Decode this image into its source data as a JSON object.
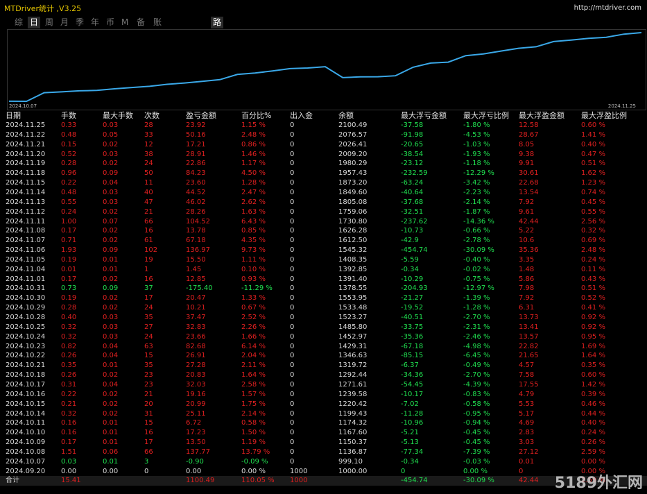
{
  "app": {
    "title": "MTDriver统计 ,V3.25",
    "url": "http://mtdriver.com"
  },
  "tabs": [
    {
      "label": "综",
      "active": false
    },
    {
      "label": "日",
      "active": true
    },
    {
      "label": "周",
      "active": false
    },
    {
      "label": "月",
      "active": false
    },
    {
      "label": "季",
      "active": false
    },
    {
      "label": "年",
      "active": false
    },
    {
      "label": "币",
      "active": false
    },
    {
      "label": "M",
      "active": false
    },
    {
      "label": "备",
      "active": false
    },
    {
      "label": "账户",
      "active": false
    },
    {
      "label": "路径",
      "active": true
    }
  ],
  "chart": {
    "start_date": "2024.10.07",
    "end_date": "2024.11.25",
    "line_color": "#3aa8e8"
  },
  "columns": [
    "日期",
    "手数",
    "最大手数",
    "次数",
    "盈亏金额",
    "百分比%",
    "出入金",
    "余额",
    "最大浮亏金额",
    "最大浮亏比例",
    "最大浮盈金额",
    "最大浮盈比例"
  ],
  "rows": [
    [
      "2024.11.25",
      "0.33",
      "0.03",
      "28",
      "23.92",
      "1.15 %",
      "0",
      "2100.49",
      "-37.58",
      "-1.80 %",
      "12.58",
      "0.60 %"
    ],
    [
      "2024.11.22",
      "0.48",
      "0.05",
      "33",
      "50.16",
      "2.48 %",
      "0",
      "2076.57",
      "-91.98",
      "-4.53 %",
      "28.67",
      "1.41 %"
    ],
    [
      "2024.11.21",
      "0.15",
      "0.02",
      "12",
      "17.21",
      "0.86 %",
      "0",
      "2026.41",
      "-20.65",
      "-1.03 %",
      "8.05",
      "0.40 %"
    ],
    [
      "2024.11.20",
      "0.52",
      "0.03",
      "38",
      "28.91",
      "1.46 %",
      "0",
      "2009.20",
      "-38.54",
      "-1.93 %",
      "9.38",
      "0.47 %"
    ],
    [
      "2024.11.19",
      "0.28",
      "0.02",
      "24",
      "22.86",
      "1.17 %",
      "0",
      "1980.29",
      "-23.12",
      "-1.18 %",
      "9.91",
      "0.51 %"
    ],
    [
      "2024.11.18",
      "0.96",
      "0.09",
      "50",
      "84.23",
      "4.50 %",
      "0",
      "1957.43",
      "-232.59",
      "-12.29 %",
      "30.61",
      "1.62 %"
    ],
    [
      "2024.11.15",
      "0.22",
      "0.04",
      "11",
      "23.60",
      "1.28 %",
      "0",
      "1873.20",
      "-63.24",
      "-3.42 %",
      "22.68",
      "1.23 %"
    ],
    [
      "2024.11.14",
      "0.48",
      "0.03",
      "40",
      "44.52",
      "2.47 %",
      "0",
      "1849.60",
      "-40.64",
      "-2.23 %",
      "13.54",
      "0.74 %"
    ],
    [
      "2024.11.13",
      "0.55",
      "0.03",
      "47",
      "46.02",
      "2.62 %",
      "0",
      "1805.08",
      "-37.68",
      "-2.14 %",
      "7.92",
      "0.45 %"
    ],
    [
      "2024.11.12",
      "0.24",
      "0.02",
      "21",
      "28.26",
      "1.63 %",
      "0",
      "1759.06",
      "-32.51",
      "-1.87 %",
      "9.61",
      "0.55 %"
    ],
    [
      "2024.11.11",
      "1.00",
      "0.07",
      "66",
      "104.52",
      "6.43 %",
      "0",
      "1730.80",
      "-237.62",
      "-14.36 %",
      "42.44",
      "2.56 %"
    ],
    [
      "2024.11.08",
      "0.17",
      "0.02",
      "16",
      "13.78",
      "0.85 %",
      "0",
      "1626.28",
      "-10.73",
      "-0.66 %",
      "5.22",
      "0.32 %"
    ],
    [
      "2024.11.07",
      "0.71",
      "0.02",
      "61",
      "67.18",
      "4.35 %",
      "0",
      "1612.50",
      "-42.9",
      "-2.78 %",
      "10.6",
      "0.69 %"
    ],
    [
      "2024.11.06",
      "1.93",
      "0.09",
      "102",
      "136.97",
      "9.73 %",
      "0",
      "1545.32",
      "-454.74",
      "-30.09 %",
      "35.36",
      "2.48 %"
    ],
    [
      "2024.11.05",
      "0.19",
      "0.01",
      "19",
      "15.50",
      "1.11 %",
      "0",
      "1408.35",
      "-5.59",
      "-0.40 %",
      "3.35",
      "0.24 %"
    ],
    [
      "2024.11.04",
      "0.01",
      "0.01",
      "1",
      "1.45",
      "0.10 %",
      "0",
      "1392.85",
      "-0.34",
      "-0.02 %",
      "1.48",
      "0.11 %"
    ],
    [
      "2024.11.01",
      "0.17",
      "0.02",
      "16",
      "12.85",
      "0.93 %",
      "0",
      "1391.40",
      "-10.29",
      "-0.75 %",
      "5.86",
      "0.43 %"
    ],
    [
      "2024.10.31",
      "0.73",
      "0.09",
      "37",
      "-175.40",
      "-11.29 %",
      "0",
      "1378.55",
      "-204.93",
      "-12.97 %",
      "7.98",
      "0.51 %"
    ],
    [
      "2024.10.30",
      "0.19",
      "0.02",
      "17",
      "20.47",
      "1.33 %",
      "0",
      "1553.95",
      "-21.27",
      "-1.39 %",
      "7.92",
      "0.52 %"
    ],
    [
      "2024.10.29",
      "0.28",
      "0.02",
      "24",
      "10.21",
      "0.67 %",
      "0",
      "1533.48",
      "-19.52",
      "-1.28 %",
      "6.31",
      "0.41 %"
    ],
    [
      "2024.10.28",
      "0.40",
      "0.03",
      "35",
      "37.47",
      "2.52 %",
      "0",
      "1523.27",
      "-40.51",
      "-2.70 %",
      "13.73",
      "0.92 %"
    ],
    [
      "2024.10.25",
      "0.32",
      "0.03",
      "27",
      "32.83",
      "2.26 %",
      "0",
      "1485.80",
      "-33.75",
      "-2.31 %",
      "13.41",
      "0.92 %"
    ],
    [
      "2024.10.24",
      "0.32",
      "0.03",
      "24",
      "23.66",
      "1.66 %",
      "0",
      "1452.97",
      "-35.36",
      "-2.46 %",
      "13.57",
      "0.95 %"
    ],
    [
      "2024.10.23",
      "0.82",
      "0.04",
      "63",
      "82.68",
      "6.14 %",
      "0",
      "1429.31",
      "-67.18",
      "-4.98 %",
      "22.82",
      "1.69 %"
    ],
    [
      "2024.10.22",
      "0.26",
      "0.04",
      "15",
      "26.91",
      "2.04 %",
      "0",
      "1346.63",
      "-85.15",
      "-6.45 %",
      "21.65",
      "1.64 %"
    ],
    [
      "2024.10.21",
      "0.35",
      "0.01",
      "35",
      "27.28",
      "2.11 %",
      "0",
      "1319.72",
      "-6.37",
      "-0.49 %",
      "4.57",
      "0.35 %"
    ],
    [
      "2024.10.18",
      "0.26",
      "0.02",
      "23",
      "20.83",
      "1.64 %",
      "0",
      "1292.44",
      "-34.36",
      "-2.70 %",
      "7.58",
      "0.60 %"
    ],
    [
      "2024.10.17",
      "0.31",
      "0.04",
      "23",
      "32.03",
      "2.58 %",
      "0",
      "1271.61",
      "-54.45",
      "-4.39 %",
      "17.55",
      "1.42 %"
    ],
    [
      "2024.10.16",
      "0.22",
      "0.02",
      "21",
      "19.16",
      "1.57 %",
      "0",
      "1239.58",
      "-10.17",
      "-0.83 %",
      "4.79",
      "0.39 %"
    ],
    [
      "2024.10.15",
      "0.21",
      "0.02",
      "20",
      "20.99",
      "1.75 %",
      "0",
      "1220.42",
      "-7.02",
      "-0.58 %",
      "5.53",
      "0.46 %"
    ],
    [
      "2024.10.14",
      "0.32",
      "0.02",
      "31",
      "25.11",
      "2.14 %",
      "0",
      "1199.43",
      "-11.28",
      "-0.95 %",
      "5.17",
      "0.44 %"
    ],
    [
      "2024.10.11",
      "0.16",
      "0.01",
      "15",
      "6.72",
      "0.58 %",
      "0",
      "1174.32",
      "-10.96",
      "-0.94 %",
      "4.69",
      "0.40 %"
    ],
    [
      "2024.10.10",
      "0.16",
      "0.01",
      "16",
      "17.23",
      "1.50 %",
      "0",
      "1167.60",
      "-5.21",
      "-0.45 %",
      "2.83",
      "0.24 %"
    ],
    [
      "2024.10.09",
      "0.17",
      "0.01",
      "17",
      "13.50",
      "1.19 %",
      "0",
      "1150.37",
      "-5.13",
      "-0.45 %",
      "3.03",
      "0.26 %"
    ],
    [
      "2024.10.08",
      "1.51",
      "0.06",
      "66",
      "137.77",
      "13.79 %",
      "0",
      "1136.87",
      "-77.34",
      "-7.39 %",
      "27.12",
      "2.59 %"
    ],
    [
      "2024.10.07",
      "0.03",
      "0.01",
      "3",
      "-0.90",
      "-0.09 %",
      "0",
      "999.10",
      "-0.34",
      "-0.03 %",
      "0.01",
      "0.00 %"
    ],
    [
      "2024.09.20",
      "0.00",
      "0.00",
      "0",
      "0.00",
      "0.00 %",
      "1000",
      "1000.00",
      "0",
      "0.00 %",
      "0",
      "0.00 %"
    ]
  ],
  "total": [
    "合计",
    "15.41",
    "",
    "",
    "1100.49",
    "110.05 %",
    "1000",
    "",
    "-454.74",
    "-30.09 %",
    "42.44",
    "2.59 %"
  ],
  "watermark": "5189外汇网"
}
